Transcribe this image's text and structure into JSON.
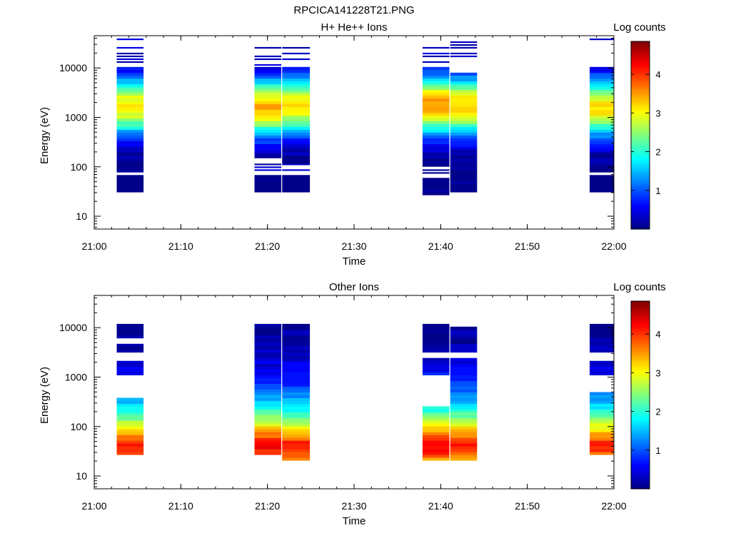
{
  "page_title": "RPCICA141228T21.PNG",
  "colors": {
    "colormap": [
      "#00007f",
      "#0000ff",
      "#007fff",
      "#00ffff",
      "#7fff7f",
      "#ffff00",
      "#ff7f00",
      "#ff0000",
      "#7f0000"
    ]
  },
  "chart_data": [
    {
      "type": "heatmap",
      "title": "H+ He++ Ions",
      "xlabel": "Time",
      "ylabel": "Energy (eV)",
      "xlim": [
        "21:00",
        "22:00"
      ],
      "xticks": [
        "21:00",
        "21:10",
        "21:20",
        "21:30",
        "21:40",
        "21:50",
        "22:00"
      ],
      "ylim": [
        5.5,
        45000
      ],
      "yscale": "log",
      "yticks": [
        "10",
        "100",
        "1000",
        "10000"
      ],
      "colorbar": {
        "label": "Log counts",
        "range": [
          0,
          4.85
        ],
        "ticks": [
          "1",
          "2",
          "3",
          "4"
        ]
      },
      "columns": [
        {
          "t_start": "21:02.6",
          "t_end": "21:05.7",
          "e_min": 33,
          "e_max": 36000,
          "peak_energy": 1700,
          "peak_log_counts": 3.1,
          "sparse_above": 10000,
          "sparse_below": 80
        },
        {
          "t_start": "21:18.5",
          "t_end": "21:21.6",
          "e_min": 33,
          "e_max": 27000,
          "peak_energy": 1600,
          "peak_log_counts": 3.4,
          "sparse_above": 10000,
          "sparse_below": 150
        },
        {
          "t_start": "21:21.7",
          "t_end": "21:24.9",
          "e_min": 33,
          "e_max": 27000,
          "peak_energy": 1700,
          "peak_log_counts": 3.1,
          "sparse_above": 11000,
          "sparse_below": 120
        },
        {
          "t_start": "21:37.9",
          "t_end": "21:41.0",
          "e_min": 28,
          "e_max": 34000,
          "peak_energy": 1800,
          "peak_log_counts": 3.6,
          "sparse_above": 11000,
          "sparse_below": 100
        },
        {
          "t_start": "21:41.1",
          "t_end": "21:44.2",
          "e_min": 33,
          "e_max": 36000,
          "peak_energy": 1700,
          "peak_log_counts": 3.3,
          "sparse_above": 8000,
          "sparse_below": 70
        },
        {
          "t_start": "21:57.2",
          "t_end": "22:00.0",
          "e_min": 33,
          "e_max": 38000,
          "peak_energy": 1600,
          "peak_log_counts": 3.2,
          "sparse_above": 11000,
          "sparse_below": 80
        }
      ]
    },
    {
      "type": "heatmap",
      "title": "Other Ions",
      "xlabel": "Time",
      "ylabel": "Energy (eV)",
      "xlim": [
        "21:00",
        "22:00"
      ],
      "xticks": [
        "21:00",
        "21:10",
        "21:20",
        "21:30",
        "21:40",
        "21:50",
        "22:00"
      ],
      "ylim": [
        5.5,
        45000
      ],
      "yscale": "log",
      "yticks": [
        "10",
        "100",
        "1000",
        "10000"
      ],
      "colorbar": {
        "label": "Log counts",
        "range": [
          0,
          4.85
        ],
        "ticks": [
          "1",
          "2",
          "3",
          "4"
        ]
      },
      "columns": [
        {
          "t_start": "21:02.6",
          "t_end": "21:05.7",
          "e_min": 28,
          "e_max": 11000,
          "peak_energy": 42,
          "peak_log_counts": 4.1,
          "gaps": [
            [
              400,
              1050
            ],
            [
              2100,
              3300
            ],
            [
              4800,
              6300
            ]
          ]
        },
        {
          "t_start": "21:18.5",
          "t_end": "21:21.6",
          "e_min": 28,
          "e_max": 11000,
          "peak_energy": 42,
          "peak_log_counts": 4.3,
          "gaps": []
        },
        {
          "t_start": "21:21.7",
          "t_end": "21:24.9",
          "e_min": 22,
          "e_max": 11000,
          "peak_energy": 40,
          "peak_log_counts": 4.2,
          "gaps": []
        },
        {
          "t_start": "21:37.9",
          "t_end": "21:41.0",
          "e_min": 22,
          "e_max": 11000,
          "peak_energy": 42,
          "peak_log_counts": 4.3,
          "gaps": [
            [
              260,
              1150
            ],
            [
              2300,
              3300
            ]
          ]
        },
        {
          "t_start": "21:41.1",
          "t_end": "21:44.2",
          "e_min": 22,
          "e_max": 10000,
          "peak_energy": 42,
          "peak_log_counts": 4.2,
          "gaps": [
            [
              2400,
              3300
            ]
          ]
        },
        {
          "t_start": "21:57.2",
          "t_end": "22:00.0",
          "e_min": 28,
          "e_max": 11000,
          "peak_energy": 42,
          "peak_log_counts": 4.1,
          "gaps": [
            [
              500,
              1150
            ],
            [
              2100,
              3300
            ]
          ]
        }
      ]
    }
  ]
}
